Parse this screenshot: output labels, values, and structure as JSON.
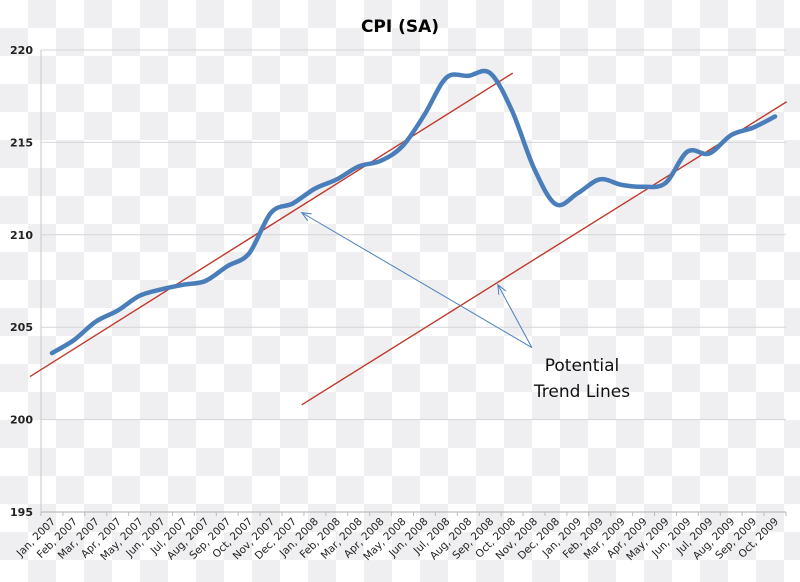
{
  "chart_data": {
    "type": "line",
    "title": "CPI (SA)",
    "xlabel": "",
    "ylabel": "",
    "ylim": [
      195,
      220
    ],
    "yticks": [
      "195",
      "200",
      "205",
      "210",
      "215",
      "220"
    ],
    "grid": true,
    "legend": "none",
    "categories": [
      "Jan, 2007",
      "Feb, 2007",
      "Mar, 2007",
      "Apr, 2007",
      "May, 2007",
      "Jun, 2007",
      "Jul, 2007",
      "Aug, 2007",
      "Sep, 2007",
      "Oct, 2007",
      "Nov, 2007",
      "Dec, 2007",
      "Jan, 2008",
      "Feb, 2008",
      "Mar, 2008",
      "Apr, 2008",
      "May, 2008",
      "Jun, 2008",
      "Jul, 2008",
      "Aug, 2008",
      "Sep, 2008",
      "Oct, 2008",
      "Nov, 2008",
      "Dec, 2008",
      "Jan, 2009",
      "Feb, 2009",
      "Mar, 2009",
      "Apr, 2009",
      "May, 2009",
      "Jun, 2009",
      "Jul, 2009",
      "Aug, 2009",
      "Sep, 2009",
      "Oct, 2009"
    ],
    "series": [
      {
        "values": [
          203.6,
          204.3,
          205.3,
          205.9,
          206.7,
          207.05,
          207.3,
          207.5,
          208.3,
          209.0,
          211.2,
          211.7,
          212.5,
          213.0,
          213.7,
          214.0,
          214.8,
          216.5,
          218.5,
          218.6,
          218.75,
          216.7,
          213.6,
          211.65,
          212.25,
          213.0,
          212.7,
          212.6,
          212.8,
          214.5,
          214.4,
          215.4,
          215.8,
          216.4
        ],
        "color": "#4a7ebb"
      }
    ],
    "trend_lines": [
      {
        "start": [
          -1.0,
          202.33
        ],
        "end": [
          21.03,
          218.75
        ],
        "color": "#c0392b"
      },
      {
        "start": [
          11.4,
          200.8
        ],
        "end": [
          33.53,
          217.2
        ],
        "color": "#c0392b"
      }
    ],
    "annotation": {
      "lines": [
        "Potential",
        "Trend Lines"
      ],
      "arrow_tail": [
        21.9,
        203.9
      ],
      "arrow_targets": [
        [
          11.4,
          211.2
        ],
        [
          20.35,
          207.3
        ]
      ],
      "color": "#4a7ebb"
    }
  }
}
